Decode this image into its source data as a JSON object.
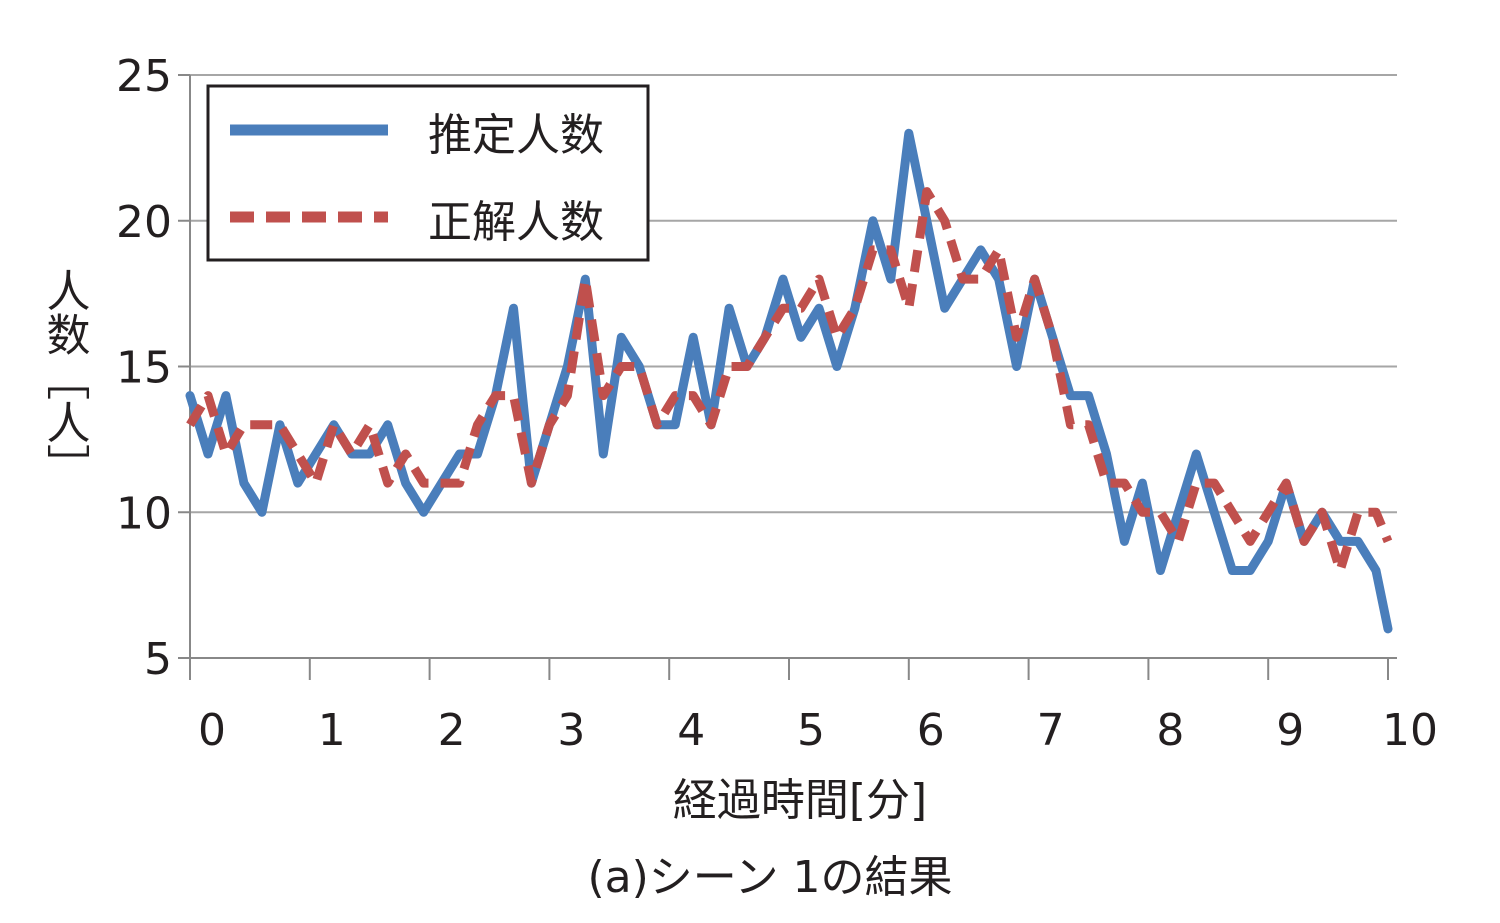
{
  "chart_data": {
    "type": "line",
    "ylabel": "人数［人］",
    "xlabel": "経過時間[分]",
    "caption": "(a)シーン 1の結果",
    "xlim": [
      0,
      10
    ],
    "ylim": [
      5,
      25
    ],
    "x_ticks": [
      "0",
      "1",
      "2",
      "3",
      "4",
      "5",
      "6",
      "7",
      "8",
      "9",
      "10"
    ],
    "y_ticks": [
      "25",
      "20",
      "15",
      "10",
      "5"
    ],
    "grid": true,
    "legend_position": "top-left",
    "series": [
      {
        "name": "推定人数",
        "color": "#4a7ebb",
        "style": "solid",
        "x": [
          0,
          0.15,
          0.3,
          0.45,
          0.6,
          0.75,
          0.9,
          1.05,
          1.2,
          1.35,
          1.5,
          1.65,
          1.8,
          1.95,
          2.1,
          2.25,
          2.4,
          2.55,
          2.7,
          2.85,
          3.0,
          3.15,
          3.3,
          3.45,
          3.6,
          3.75,
          3.9,
          4.05,
          4.2,
          4.35,
          4.5,
          4.65,
          4.8,
          4.95,
          5.1,
          5.25,
          5.4,
          5.55,
          5.7,
          5.85,
          6.0,
          6.15,
          6.3,
          6.45,
          6.6,
          6.75,
          6.9,
          7.05,
          7.2,
          7.35,
          7.5,
          7.65,
          7.8,
          7.95,
          8.1,
          8.25,
          8.4,
          8.55,
          8.7,
          8.85,
          9.0,
          9.15,
          9.3,
          9.45,
          9.6,
          9.75,
          9.9,
          10.0
        ],
        "values": [
          14,
          12,
          14,
          11,
          10,
          13,
          11,
          12,
          13,
          12,
          12,
          13,
          11,
          10,
          11,
          12,
          12,
          14,
          17,
          11,
          13,
          15,
          18,
          12,
          16,
          15,
          13,
          13,
          16,
          13,
          17,
          15,
          16,
          18,
          16,
          17,
          15,
          17,
          20,
          18,
          23,
          20,
          17,
          18,
          19,
          18,
          15,
          18,
          16,
          14,
          14,
          12,
          9,
          11,
          8,
          10,
          12,
          10,
          8,
          8,
          9,
          11,
          9,
          10,
          9,
          9,
          8,
          6
        ]
      },
      {
        "name": "正解人数",
        "color": "#c0504d",
        "style": "dashed",
        "x": [
          0,
          0.15,
          0.3,
          0.45,
          0.6,
          0.75,
          0.9,
          1.05,
          1.2,
          1.35,
          1.5,
          1.65,
          1.8,
          1.95,
          2.1,
          2.25,
          2.4,
          2.55,
          2.7,
          2.85,
          3.0,
          3.15,
          3.3,
          3.45,
          3.6,
          3.75,
          3.9,
          4.05,
          4.2,
          4.35,
          4.5,
          4.65,
          4.8,
          4.95,
          5.1,
          5.25,
          5.4,
          5.55,
          5.7,
          5.85,
          6.0,
          6.15,
          6.3,
          6.45,
          6.6,
          6.75,
          6.9,
          7.05,
          7.2,
          7.35,
          7.5,
          7.65,
          7.8,
          7.95,
          8.1,
          8.25,
          8.4,
          8.55,
          8.7,
          8.85,
          9.0,
          9.15,
          9.3,
          9.45,
          9.6,
          9.75,
          9.9,
          10.0
        ],
        "values": [
          13,
          14,
          12,
          13,
          13,
          13,
          12,
          11,
          13,
          12,
          13,
          11,
          12,
          11,
          11,
          11,
          13,
          14,
          14,
          11,
          13,
          14,
          18,
          14,
          15,
          15,
          13,
          14,
          14,
          13,
          15,
          15,
          16,
          17,
          17,
          18,
          16,
          17,
          19,
          19,
          17,
          21,
          20,
          18,
          18,
          19,
          16,
          18,
          16,
          13,
          13,
          11,
          11,
          10,
          10,
          9,
          11,
          11,
          10,
          9,
          10,
          11,
          9,
          10,
          8,
          10,
          10,
          9
        ]
      }
    ]
  }
}
